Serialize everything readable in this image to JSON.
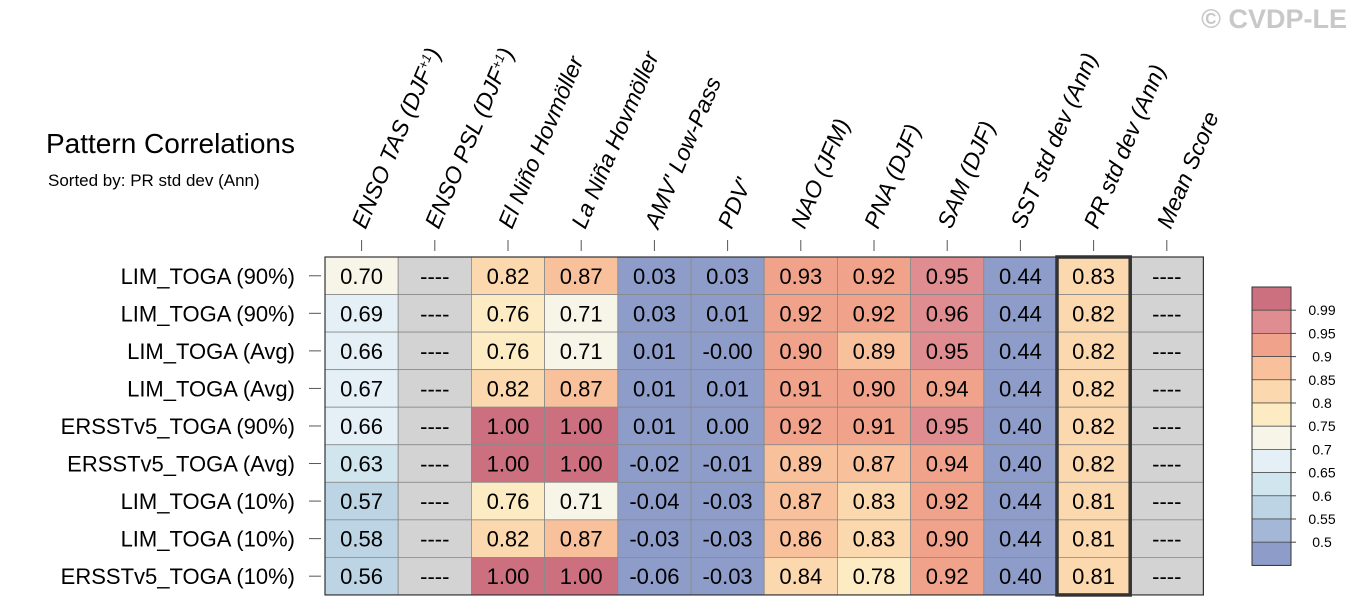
{
  "chart_data": {
    "type": "heatmap",
    "title": "Pattern Correlations",
    "subtitle": "Sorted by: PR std dev (Ann)",
    "watermark": "© CVDP-LE",
    "columns": [
      {
        "main": "ENSO TAS (DJF",
        "sup": "+1",
        "tail": ")"
      },
      {
        "main": "ENSO PSL (DJF",
        "sup": "+1",
        "tail": ")"
      },
      {
        "main": "El Niño Hovmöller",
        "sup": "",
        "tail": ""
      },
      {
        "main": "La Niña Hovmöller",
        "sup": "",
        "tail": ""
      },
      {
        "main": "AMV' Low-Pass",
        "sup": "",
        "tail": ""
      },
      {
        "main": "PDV'",
        "sup": "",
        "tail": ""
      },
      {
        "main": "NAO (JFM)",
        "sup": "",
        "tail": ""
      },
      {
        "main": "PNA (DJF)",
        "sup": "",
        "tail": ""
      },
      {
        "main": "SAM (DJF)",
        "sup": "",
        "tail": ""
      },
      {
        "main": "SST std dev (Ann)",
        "sup": "",
        "tail": ""
      },
      {
        "main": "PR std dev (Ann)",
        "sup": "",
        "tail": ""
      },
      {
        "main": "Mean Score",
        "sup": "",
        "tail": ""
      }
    ],
    "rows": [
      "LIM_TOGA (90%)",
      "LIM_TOGA (90%)",
      "LIM_TOGA (Avg)",
      "LIM_TOGA (Avg)",
      "ERSSTv5_TOGA (90%)",
      "ERSSTv5_TOGA (Avg)",
      "LIM_TOGA (10%)",
      "LIM_TOGA (10%)",
      "ERSSTv5_TOGA (10%)"
    ],
    "values": [
      [
        "0.70",
        "----",
        "0.82",
        "0.87",
        "0.03",
        "0.03",
        "0.93",
        "0.92",
        "0.95",
        "0.44",
        "0.83",
        "----"
      ],
      [
        "0.69",
        "----",
        "0.76",
        "0.71",
        "0.03",
        "0.01",
        "0.92",
        "0.92",
        "0.96",
        "0.44",
        "0.82",
        "----"
      ],
      [
        "0.66",
        "----",
        "0.76",
        "0.71",
        "0.01",
        "-0.00",
        "0.90",
        "0.89",
        "0.95",
        "0.44",
        "0.82",
        "----"
      ],
      [
        "0.67",
        "----",
        "0.82",
        "0.87",
        "0.01",
        "0.01",
        "0.91",
        "0.90",
        "0.94",
        "0.44",
        "0.82",
        "----"
      ],
      [
        "0.66",
        "----",
        "1.00",
        "1.00",
        "0.01",
        "0.00",
        "0.92",
        "0.91",
        "0.95",
        "0.40",
        "0.82",
        "----"
      ],
      [
        "0.63",
        "----",
        "1.00",
        "1.00",
        "-0.02",
        "-0.01",
        "0.89",
        "0.87",
        "0.94",
        "0.40",
        "0.82",
        "----"
      ],
      [
        "0.57",
        "----",
        "0.76",
        "0.71",
        "-0.04",
        "-0.03",
        "0.87",
        "0.83",
        "0.92",
        "0.44",
        "0.81",
        "----"
      ],
      [
        "0.58",
        "----",
        "0.82",
        "0.87",
        "-0.03",
        "-0.03",
        "0.86",
        "0.83",
        "0.90",
        "0.44",
        "0.81",
        "----"
      ],
      [
        "0.56",
        "----",
        "1.00",
        "1.00",
        "-0.06",
        "-0.03",
        "0.84",
        "0.78",
        "0.92",
        "0.40",
        "0.81",
        "----"
      ]
    ],
    "highlighted_column": "PR std dev (Ann)",
    "missing_color": "#d3d3d3",
    "colorbar": {
      "levels": [
        "0.5",
        "0.55",
        "0.6",
        "0.65",
        "0.7",
        "0.75",
        "0.8",
        "0.85",
        "0.9",
        "0.95",
        "0.99"
      ],
      "colors": [
        "#8d9cc9",
        "#a4b7d6",
        "#bcd4e3",
        "#d0e5ee",
        "#e5f0f6",
        "#f6f5e8",
        "#fdebc3",
        "#fbd8ad",
        "#f8c19c",
        "#f1a28b",
        "#e08d92",
        "#cc7080"
      ]
    }
  }
}
